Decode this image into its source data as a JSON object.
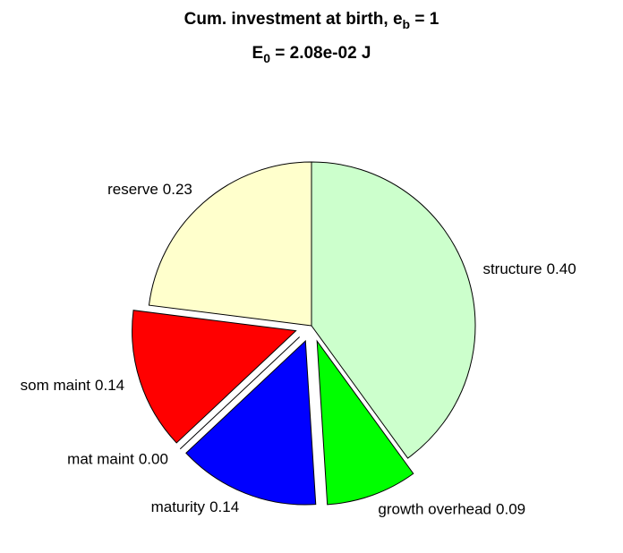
{
  "chart_data": {
    "type": "pie",
    "title_parts": [
      "Cum. investment at birth, e",
      "b",
      " = 1"
    ],
    "subtitle_parts": [
      "E",
      "0",
      " = 2.08e-02 J"
    ],
    "categories": [
      "structure",
      "growth overhead",
      "maturity",
      "mat maint",
      "som maint",
      "reserve"
    ],
    "values": [
      0.4,
      0.09,
      0.14,
      0.0,
      0.14,
      0.23
    ],
    "value_labels": [
      "0.40",
      "0.09",
      "0.14",
      "0.00",
      "0.14",
      "0.23"
    ],
    "colors": [
      "#ccffcc",
      "#00ff00",
      "#0000ff",
      "#ff00ff",
      "#ff0000",
      "#ffffcc"
    ],
    "explode": [
      false,
      true,
      true,
      true,
      true,
      false
    ]
  }
}
